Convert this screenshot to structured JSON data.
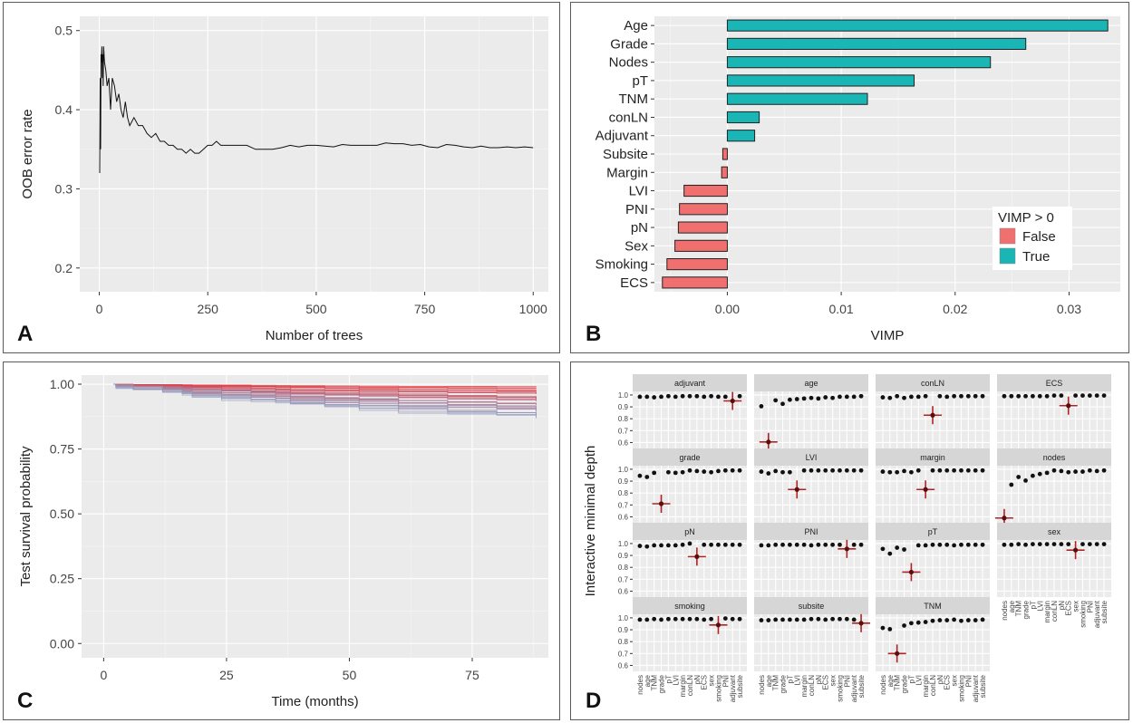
{
  "panels": {
    "a": "A",
    "b": "B",
    "c": "C",
    "d": "D"
  },
  "chart_data": [
    {
      "id": "A",
      "type": "line",
      "xlabel": "Number of trees",
      "ylabel": "OOB error rate",
      "xlim": [
        -45,
        1035
      ],
      "ylim": [
        0.17,
        0.518
      ],
      "xticks": [
        0,
        250,
        500,
        750,
        1000
      ],
      "yticks": [
        0.2,
        0.3,
        0.4,
        0.5
      ],
      "series": [
        {
          "name": "OOB error rate",
          "x": [
            1,
            2,
            3,
            4,
            5,
            6,
            7,
            8,
            9,
            10,
            12,
            15,
            18,
            22,
            26,
            30,
            35,
            40,
            45,
            50,
            55,
            60,
            65,
            70,
            80,
            90,
            100,
            110,
            120,
            130,
            140,
            150,
            160,
            170,
            180,
            190,
            200,
            210,
            220,
            230,
            240,
            250,
            260,
            270,
            280,
            300,
            320,
            340,
            360,
            380,
            400,
            420,
            440,
            460,
            480,
            500,
            520,
            540,
            560,
            580,
            600,
            620,
            640,
            660,
            680,
            700,
            720,
            740,
            760,
            780,
            800,
            820,
            840,
            860,
            880,
            900,
            920,
            940,
            960,
            980,
            1000
          ],
          "y": [
            0.32,
            0.44,
            0.35,
            0.47,
            0.46,
            0.48,
            0.44,
            0.47,
            0.43,
            0.48,
            0.46,
            0.45,
            0.43,
            0.44,
            0.4,
            0.44,
            0.43,
            0.41,
            0.42,
            0.4,
            0.39,
            0.41,
            0.39,
            0.38,
            0.39,
            0.38,
            0.38,
            0.37,
            0.365,
            0.37,
            0.36,
            0.36,
            0.355,
            0.355,
            0.35,
            0.35,
            0.345,
            0.35,
            0.345,
            0.345,
            0.35,
            0.355,
            0.355,
            0.36,
            0.355,
            0.355,
            0.355,
            0.355,
            0.35,
            0.35,
            0.35,
            0.352,
            0.355,
            0.353,
            0.355,
            0.355,
            0.354,
            0.353,
            0.356,
            0.355,
            0.355,
            0.355,
            0.355,
            0.358,
            0.357,
            0.357,
            0.355,
            0.356,
            0.353,
            0.352,
            0.356,
            0.355,
            0.353,
            0.352,
            0.354,
            0.352,
            0.352,
            0.353,
            0.352,
            0.353,
            0.352
          ]
        }
      ]
    },
    {
      "id": "B",
      "type": "bar",
      "orientation": "horizontal",
      "xlabel": "VIMP",
      "ylabel": "",
      "xlim": [
        -0.0064,
        0.0345
      ],
      "xticks": [
        0.0,
        0.01,
        0.02,
        0.03
      ],
      "xtick_labels": [
        "0.00",
        "0.01",
        "0.02",
        "0.03"
      ],
      "categories": [
        "Age",
        "Grade",
        "Nodes",
        "pT",
        "TNM",
        "conLN",
        "Adjuvant",
        "Subsite",
        "Margin",
        "LVI",
        "PNI",
        "pN",
        "Sex",
        "Smoking",
        "ECS"
      ],
      "values": [
        0.0334,
        0.0262,
        0.0231,
        0.0164,
        0.0123,
        0.0028,
        0.0024,
        -0.0004,
        -0.0005,
        -0.0038,
        -0.0042,
        -0.0043,
        -0.0046,
        -0.0053,
        -0.0057
      ],
      "legend": {
        "title": "VIMP > 0",
        "position": "right",
        "entries": [
          {
            "label": "False",
            "color": "#f07070"
          },
          {
            "label": "True",
            "color": "#1ab5b5"
          }
        ]
      }
    },
    {
      "id": "C",
      "type": "line",
      "subtype": "step survival curves",
      "xlabel": "Time (months)",
      "ylabel": "Test survival probability",
      "xlim": [
        -4.5,
        90.5
      ],
      "ylim": [
        -0.055,
        1.035
      ],
      "xticks": [
        0,
        25,
        50,
        75
      ],
      "yticks": [
        0.0,
        0.25,
        0.5,
        0.75,
        1.0
      ],
      "ytick_labels": [
        "0.00",
        "0.25",
        "0.50",
        "0.75",
        "1.00"
      ],
      "series_count": 30,
      "color_range": [
        "#e8282e",
        "#8f9cc2"
      ],
      "change_times": [
        2.5,
        6,
        12,
        16,
        18,
        24,
        30,
        35,
        38,
        45,
        52,
        60,
        70,
        80,
        88
      ],
      "final_survival_range": [
        0.82,
        0.99
      ]
    },
    {
      "id": "D",
      "type": "scatter",
      "subtype": "faceted minimal depth",
      "ylabel": "Interactive minimal depth",
      "ylim": [
        0.55,
        1.03
      ],
      "yticks": [
        0.6,
        0.7,
        0.8,
        0.9,
        1.0
      ],
      "xtick_labels": [
        "nodes",
        "age",
        "TNM",
        "grade",
        "pT",
        "LVI",
        "margin",
        "conLN",
        "pN",
        "ECS",
        "sex",
        "smoking",
        "PNI",
        "adjuvant",
        "subsite"
      ],
      "facets": [
        {
          "name": "adjuvant",
          "values": [
            0.985,
            0.985,
            0.98,
            0.985,
            0.99,
            0.985,
            0.99,
            0.99,
            0.99,
            0.985,
            0.99,
            0.985,
            0.985,
            0.95,
            0.99
          ],
          "highlight": 13
        },
        {
          "name": "age",
          "values": [
            0.905,
            0.605,
            0.955,
            0.925,
            0.96,
            0.965,
            0.97,
            0.975,
            0.97,
            0.98,
            0.975,
            0.985,
            0.985,
            0.985,
            0.99
          ],
          "highlight": 1
        },
        {
          "name": "conLN",
          "values": [
            0.98,
            0.975,
            0.99,
            0.975,
            0.985,
            0.985,
            0.99,
            0.83,
            0.99,
            0.985,
            0.99,
            0.99,
            0.99,
            0.99,
            0.99
          ],
          "highlight": 7
        },
        {
          "name": "ECS",
          "values": [
            0.99,
            0.99,
            0.99,
            0.99,
            0.99,
            0.99,
            0.99,
            0.995,
            0.995,
            0.91,
            0.995,
            0.995,
            0.995,
            0.995,
            0.995
          ],
          "highlight": 9
        },
        {
          "name": "grade",
          "values": [
            0.945,
            0.935,
            0.97,
            0.71,
            0.975,
            0.97,
            0.975,
            0.99,
            0.985,
            0.98,
            0.975,
            0.985,
            0.99,
            0.99,
            0.99
          ],
          "highlight": 3
        },
        {
          "name": "LVI",
          "values": [
            0.98,
            0.965,
            0.985,
            0.975,
            0.975,
            0.83,
            0.99,
            0.99,
            0.99,
            0.99,
            0.99,
            0.99,
            0.99,
            0.99,
            0.99
          ],
          "highlight": 5
        },
        {
          "name": "margin",
          "values": [
            0.98,
            0.975,
            0.975,
            0.985,
            0.975,
            0.99,
            0.83,
            0.99,
            0.99,
            0.99,
            0.99,
            0.99,
            0.99,
            0.99,
            0.99
          ],
          "highlight": 6
        },
        {
          "name": "nodes",
          "values": [
            0.59,
            0.87,
            0.935,
            0.905,
            0.945,
            0.96,
            0.97,
            0.99,
            0.985,
            0.975,
            0.98,
            0.98,
            0.99,
            0.985,
            0.99
          ],
          "highlight": 0
        },
        {
          "name": "pN",
          "values": [
            0.98,
            0.975,
            0.985,
            0.985,
            0.985,
            0.985,
            0.99,
            1.0,
            0.89,
            0.99,
            0.99,
            0.99,
            0.99,
            0.99,
            0.99
          ],
          "highlight": 8
        },
        {
          "name": "PNI",
          "values": [
            0.985,
            0.985,
            0.99,
            0.99,
            0.99,
            0.99,
            0.99,
            0.985,
            0.99,
            0.99,
            0.99,
            0.99,
            0.955,
            0.99,
            0.99
          ],
          "highlight": 12
        },
        {
          "name": "pT",
          "values": [
            0.955,
            0.915,
            0.965,
            0.95,
            0.76,
            0.985,
            0.985,
            0.99,
            0.99,
            0.99,
            0.985,
            0.99,
            0.99,
            0.99,
            0.99
          ],
          "highlight": 4
        },
        {
          "name": "sex",
          "values": [
            0.99,
            0.99,
            0.995,
            0.99,
            0.995,
            0.995,
            0.995,
            0.995,
            0.995,
            0.995,
            0.945,
            0.995,
            0.995,
            0.995,
            0.995
          ],
          "highlight": 10
        },
        {
          "name": "smoking",
          "values": [
            0.985,
            0.985,
            0.99,
            0.985,
            0.99,
            0.99,
            0.99,
            0.99,
            0.99,
            0.985,
            0.99,
            0.94,
            0.995,
            0.99,
            0.99
          ],
          "highlight": 11
        },
        {
          "name": "subsite",
          "values": [
            0.98,
            0.98,
            0.985,
            0.985,
            0.985,
            0.985,
            0.985,
            0.99,
            0.99,
            0.985,
            0.99,
            0.99,
            0.99,
            0.985,
            0.955
          ],
          "highlight": 14
        },
        {
          "name": "TNM",
          "values": [
            0.915,
            0.905,
            0.7,
            0.935,
            0.955,
            0.96,
            0.965,
            0.975,
            0.98,
            0.98,
            0.985,
            0.975,
            0.98,
            0.98,
            0.985
          ],
          "highlight": 2
        }
      ]
    }
  ]
}
